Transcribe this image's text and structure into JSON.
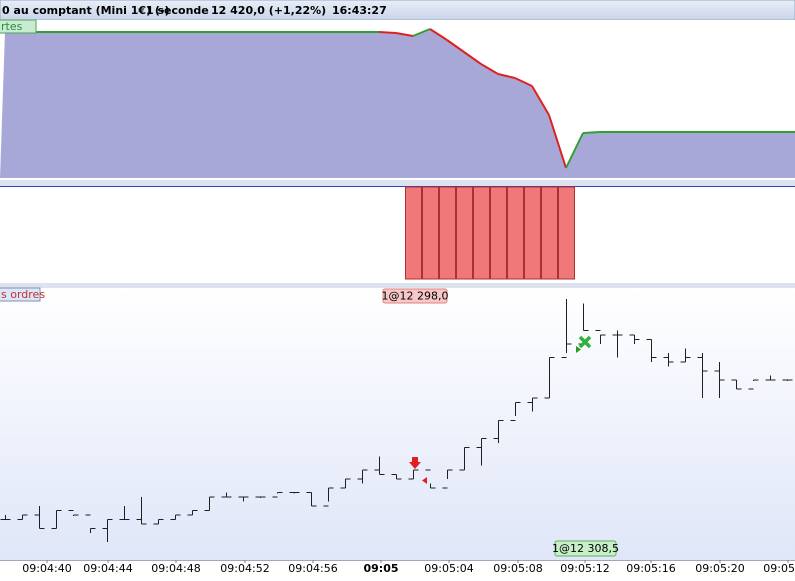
{
  "header": {
    "title": "0 au comptant (Mini 1€) (-)",
    "interval": "1 seconde",
    "price": "12 420,0 (+1,22%)",
    "time": "16:43:27"
  },
  "equity_panel": {
    "label": "rtes",
    "ylim": [
      0,
      150
    ],
    "values": [
      146,
      146,
      146,
      146,
      146,
      146,
      146,
      146,
      146,
      146,
      146,
      146,
      146,
      146,
      146,
      146,
      146,
      146,
      146,
      146,
      146,
      146,
      146,
      145,
      142,
      149,
      138,
      126,
      114,
      104,
      100,
      92,
      63,
      10,
      45,
      46,
      46,
      46,
      46,
      46,
      46,
      46,
      46,
      46,
      46,
      46,
      46
    ]
  },
  "position_panel": {
    "ylim": [
      0,
      1
    ],
    "values": [
      0,
      0,
      0,
      0,
      0,
      0,
      0,
      0,
      0,
      0,
      0,
      0,
      0,
      0,
      0,
      0,
      0,
      0,
      0,
      0,
      0,
      0,
      0,
      0,
      1,
      1,
      1,
      1,
      1,
      1,
      1,
      1,
      1,
      1,
      0,
      0,
      0,
      0,
      0,
      0,
      0,
      0,
      0,
      0,
      0,
      0,
      0
    ]
  },
  "price_panel": {
    "label": "s ordres",
    "ylim": [
      12290,
      12320
    ],
    "high": [
      12295,
      12295,
      12296,
      12295.5,
      12295,
      12293.5,
      12294.5,
      12296,
      12297,
      12294.5,
      12295,
      12295.5,
      12297,
      12297.5,
      12297,
      12297,
      12297.5,
      12297.5,
      12297.5,
      12298,
      12299,
      12300,
      12301.5,
      12299.5,
      12300,
      12298.5,
      12300,
      12302.5,
      12303.5,
      12305.5,
      12307.5,
      12308,
      12312.5,
      12319,
      12318.5,
      12315,
      12315.5,
      12315,
      12314.5,
      12313,
      12313.5,
      12313,
      12312,
      12310,
      12310,
      12310.5,
      12310
    ],
    "low": [
      12294.5,
      12294.5,
      12293.5,
      12293.5,
      12295,
      12293,
      12292,
      12294.5,
      12294,
      12294,
      12294.5,
      12295,
      12295.5,
      12297,
      12296.5,
      12297,
      12297.5,
      12297.5,
      12296,
      12296.5,
      12298,
      12298.5,
      12299.5,
      12299,
      12299,
      12298,
      12299,
      12300,
      12300.5,
      12303,
      12306,
      12306.5,
      12308,
      12313,
      12315.5,
      12314,
      12312.5,
      12314,
      12312,
      12311.5,
      12312,
      12308,
      12308,
      12309,
      12310,
      12310,
      12310
    ],
    "close": [
      12294.5,
      12295,
      12293.5,
      12295.5,
      12295,
      12293.5,
      12294.5,
      12294.5,
      12294,
      12294.5,
      12295,
      12295.5,
      12297,
      12297,
      12297,
      12297,
      12297.5,
      12297.5,
      12296,
      12298,
      12299,
      12300,
      12299.5,
      12299,
      12300,
      12298,
      12300,
      12302.5,
      12303.5,
      12305.5,
      12307.5,
      12308,
      12312.5,
      12314,
      12315.5,
      12315,
      12315,
      12314.5,
      12312.5,
      12312,
      12312.5,
      12311,
      12310,
      12309,
      12310,
      12310,
      12310
    ],
    "orders": [
      {
        "label": "1@12 298,0"
      },
      {
        "label": "1@12 308,5"
      }
    ]
  },
  "time_axis": {
    "labels": [
      "09:04:40",
      "09:04:44",
      "09:04:48",
      "09:04:52",
      "09:04:56",
      "09:05",
      "09:05:04",
      "09:05:08",
      "09:05:12",
      "09:05:16",
      "09:05:20",
      "09:05:24"
    ]
  }
}
